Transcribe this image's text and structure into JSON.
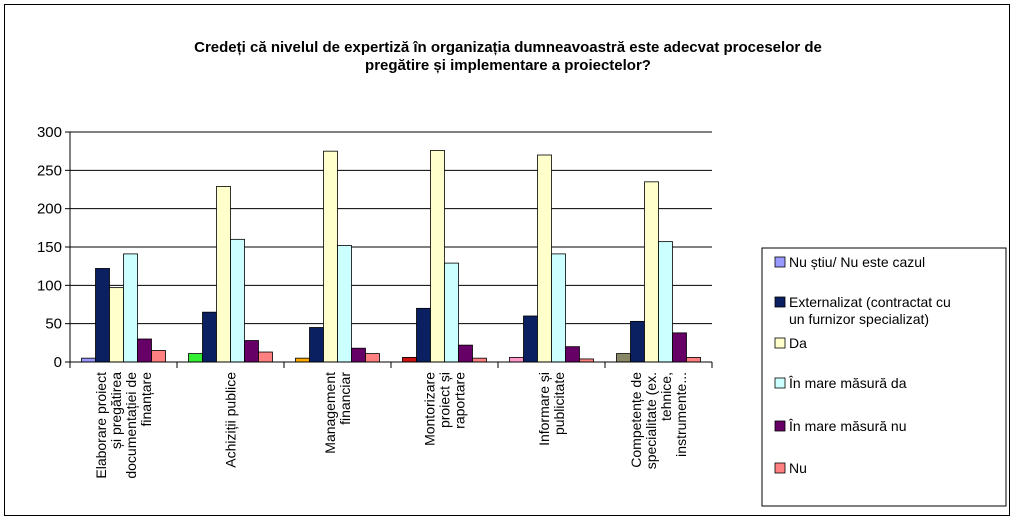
{
  "chart_data": {
    "type": "bar",
    "title_lines": [
      "Credeți că nivelul de expertiză în organizația dumneavoastră este adecvat proceselor de",
      "pregătire și implementare a proiectelor?"
    ],
    "categories": [
      [
        "Elaborare proiect",
        "și pregătirea",
        "documentației de",
        "finanțare"
      ],
      [
        "Achiziții publice"
      ],
      [
        "Management",
        "financiar"
      ],
      [
        "Montorizare",
        "proiect și",
        "raportare"
      ],
      [
        "Informare și",
        "publicitate"
      ],
      [
        "Competențe de",
        "specialitate (ex.",
        "tehnice,",
        "instrumente..."
      ]
    ],
    "ylim": [
      0,
      300
    ],
    "yticks": [
      0,
      50,
      100,
      150,
      200,
      250,
      300
    ],
    "grid": true,
    "legend_position": "right",
    "series": [
      {
        "name": "Nu știu/ Nu este cazul",
        "color": "#9999ff",
        "values": [
          5,
          11,
          5,
          6,
          6,
          11
        ]
      },
      {
        "name": "Externalizat (contractat cu un furnizor specializat)",
        "name_lines": [
          "Externalizat (contractat cu",
          "un furnizor specializat)"
        ],
        "color": "#0a2060",
        "values": [
          122,
          65,
          45,
          70,
          60,
          53
        ]
      },
      {
        "name": "Da",
        "color": "#ffffcc",
        "values": [
          97,
          229,
          275,
          276,
          270,
          235
        ]
      },
      {
        "name": "În mare măsură da",
        "color": "#ccffff",
        "values": [
          141,
          160,
          152,
          129,
          141,
          157
        ]
      },
      {
        "name": "În mare măsură nu",
        "color": "#660066",
        "values": [
          30,
          28,
          18,
          22,
          20,
          38
        ]
      },
      {
        "name": "Nu",
        "color": "#ff8080",
        "values": [
          15,
          13,
          11,
          5,
          4,
          6
        ]
      }
    ],
    "series_colors_override": {
      "0": [
        "#9999ff",
        "#33ee33",
        "#ffaa00",
        "#cc1111",
        "#ff99cc",
        "#888866"
      ]
    }
  }
}
